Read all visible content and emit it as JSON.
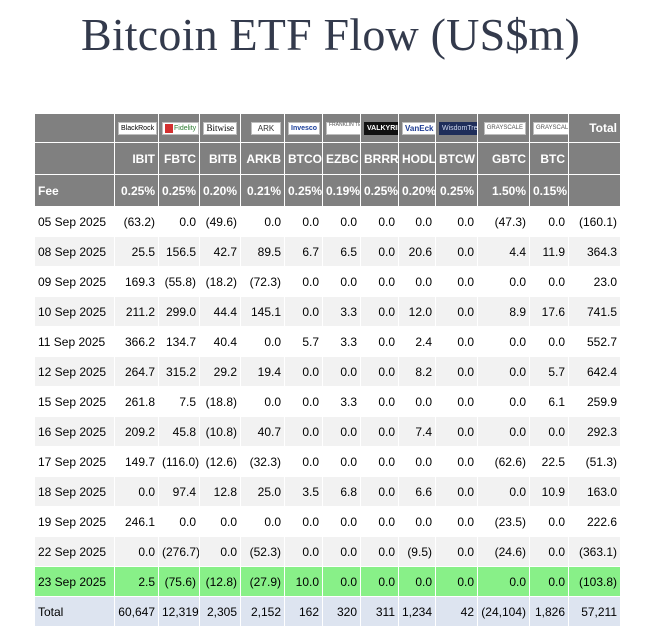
{
  "title": "Bitcoin ETF Flow (US$m)",
  "logos": [
    "BlackRock",
    "Fidelity",
    "Bitwise",
    "ARK",
    "Invesco",
    "FRANKLIN TEMPLETON",
    "VALKYRIE",
    "VanEck",
    "WisdomTree",
    "GRAYSCALE",
    "GRAYSCALE"
  ],
  "header": {
    "total_label": "Total",
    "tickers": [
      "IBIT",
      "FBTC",
      "BITB",
      "ARKB",
      "BTCO",
      "EZBC",
      "BRRR",
      "HODL",
      "BTCW",
      "GBTC",
      "BTC"
    ],
    "fee_label": "Fee",
    "fees": [
      "0.25%",
      "0.25%",
      "0.20%",
      "0.21%",
      "0.25%",
      "0.19%",
      "0.25%",
      "0.20%",
      "0.25%",
      "1.50%",
      "0.15%"
    ]
  },
  "rows": [
    {
      "date": "05 Sep 2025",
      "vals": [
        "(63.2)",
        "0.0",
        "(49.6)",
        "0.0",
        "0.0",
        "0.0",
        "0.0",
        "0.0",
        "0.0",
        "(47.3)",
        "0.0",
        "(160.1)"
      ]
    },
    {
      "date": "08 Sep 2025",
      "vals": [
        "25.5",
        "156.5",
        "42.7",
        "89.5",
        "6.7",
        "6.5",
        "0.0",
        "20.6",
        "0.0",
        "4.4",
        "11.9",
        "364.3"
      ]
    },
    {
      "date": "09 Sep 2025",
      "vals": [
        "169.3",
        "(55.8)",
        "(18.2)",
        "(72.3)",
        "0.0",
        "0.0",
        "0.0",
        "0.0",
        "0.0",
        "0.0",
        "0.0",
        "23.0"
      ]
    },
    {
      "date": "10 Sep 2025",
      "vals": [
        "211.2",
        "299.0",
        "44.4",
        "145.1",
        "0.0",
        "3.3",
        "0.0",
        "12.0",
        "0.0",
        "8.9",
        "17.6",
        "741.5"
      ]
    },
    {
      "date": "11 Sep 2025",
      "vals": [
        "366.2",
        "134.7",
        "40.4",
        "0.0",
        "5.7",
        "3.3",
        "0.0",
        "2.4",
        "0.0",
        "0.0",
        "0.0",
        "552.7"
      ]
    },
    {
      "date": "12 Sep 2025",
      "vals": [
        "264.7",
        "315.2",
        "29.2",
        "19.4",
        "0.0",
        "0.0",
        "0.0",
        "8.2",
        "0.0",
        "0.0",
        "5.7",
        "642.4"
      ]
    },
    {
      "date": "15 Sep 2025",
      "vals": [
        "261.8",
        "7.5",
        "(18.8)",
        "0.0",
        "0.0",
        "3.3",
        "0.0",
        "0.0",
        "0.0",
        "0.0",
        "6.1",
        "259.9"
      ]
    },
    {
      "date": "16 Sep 2025",
      "vals": [
        "209.2",
        "45.8",
        "(10.8)",
        "40.7",
        "0.0",
        "0.0",
        "0.0",
        "7.4",
        "0.0",
        "0.0",
        "0.0",
        "292.3"
      ]
    },
    {
      "date": "17 Sep 2025",
      "vals": [
        "149.7",
        "(116.0)",
        "(12.6)",
        "(32.3)",
        "0.0",
        "0.0",
        "0.0",
        "0.0",
        "0.0",
        "(62.6)",
        "22.5",
        "(51.3)"
      ]
    },
    {
      "date": "18 Sep 2025",
      "vals": [
        "0.0",
        "97.4",
        "12.8",
        "25.0",
        "3.5",
        "6.8",
        "0.0",
        "6.6",
        "0.0",
        "0.0",
        "10.9",
        "163.0"
      ]
    },
    {
      "date": "19 Sep 2025",
      "vals": [
        "246.1",
        "0.0",
        "0.0",
        "0.0",
        "0.0",
        "0.0",
        "0.0",
        "0.0",
        "0.0",
        "(23.5)",
        "0.0",
        "222.6"
      ]
    },
    {
      "date": "22 Sep 2025",
      "vals": [
        "0.0",
        "(276.7)",
        "0.0",
        "(52.3)",
        "0.0",
        "0.0",
        "0.0",
        "(9.5)",
        "0.0",
        "(24.6)",
        "0.0",
        "(363.1)"
      ]
    },
    {
      "date": "23 Sep 2025",
      "vals": [
        "2.5",
        "(75.6)",
        "(12.8)",
        "(27.9)",
        "10.0",
        "0.0",
        "0.0",
        "0.0",
        "0.0",
        "0.0",
        "0.0",
        "(103.8)"
      ],
      "highlight": true
    }
  ],
  "total_row": {
    "label": "Total",
    "vals": [
      "60,647",
      "12,319",
      "2,305",
      "2,152",
      "162",
      "320",
      "311",
      "1,234",
      "42",
      "(24,104)",
      "1,826",
      "57,211"
    ]
  },
  "colors": {
    "header_bg": "#808080",
    "highlight_row": "#88f088",
    "total_row": "#dde4f0",
    "negative": "#e00000"
  }
}
